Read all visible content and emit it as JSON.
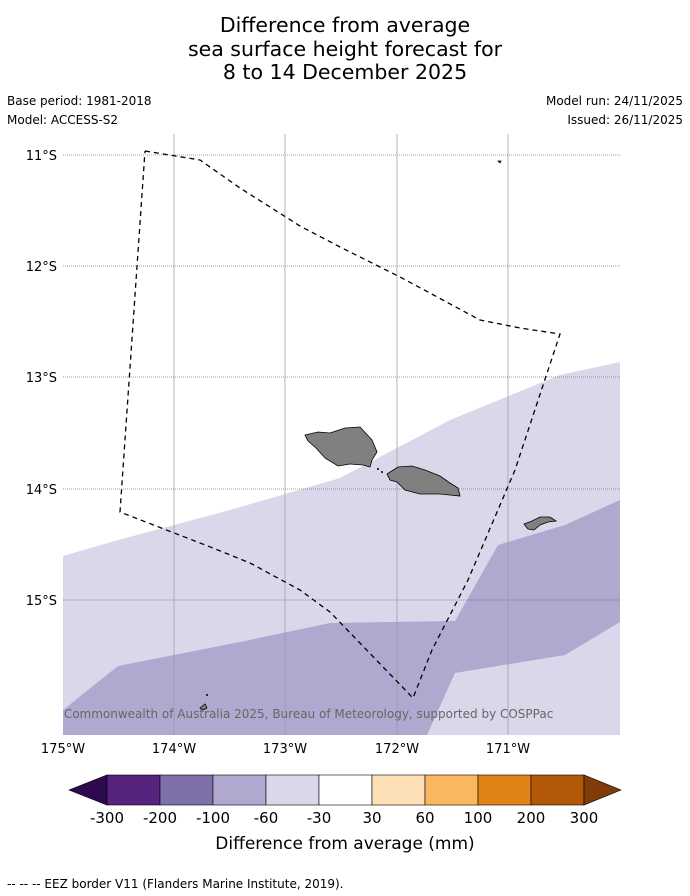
{
  "title": {
    "lines": [
      "Difference from average",
      "sea surface height forecast for",
      "8 to 14 December 2025"
    ]
  },
  "meta": {
    "base_period": "Base period: 1981-2018",
    "model": "Model: ACCESS-S2",
    "model_run": "Model run: 24/11/2025",
    "issued": "Issued: 26/11/2025"
  },
  "map": {
    "latitude_labels": [
      "11°S",
      "12°S",
      "13°S",
      "14°S",
      "15°S"
    ],
    "longitude_labels": [
      "175°W",
      "174°W",
      "173°W",
      "172°W",
      "171°W"
    ],
    "copyright": "© Commonwealth of Australia 2025, Bureau of Meteorology, supported by COSPPac"
  },
  "colorbar": {
    "tick_labels": [
      "-300",
      "-200",
      "-100",
      "-60",
      "-30",
      "30",
      "60",
      "100",
      "200",
      "300"
    ],
    "colors": [
      "#2d0a4e",
      "#56237f",
      "#8070aa",
      "#b1a8d0",
      "#d9d8ea",
      "#ffffff",
      "#fee0b6",
      "#fbb660",
      "#e08214",
      "#b35806",
      "#7f3b08"
    ],
    "label": "Difference from average (mm)"
  },
  "footer": {
    "legend_text": "-- -- -- EEZ border V11 (Flanders Marine Institute, 2019)."
  }
}
